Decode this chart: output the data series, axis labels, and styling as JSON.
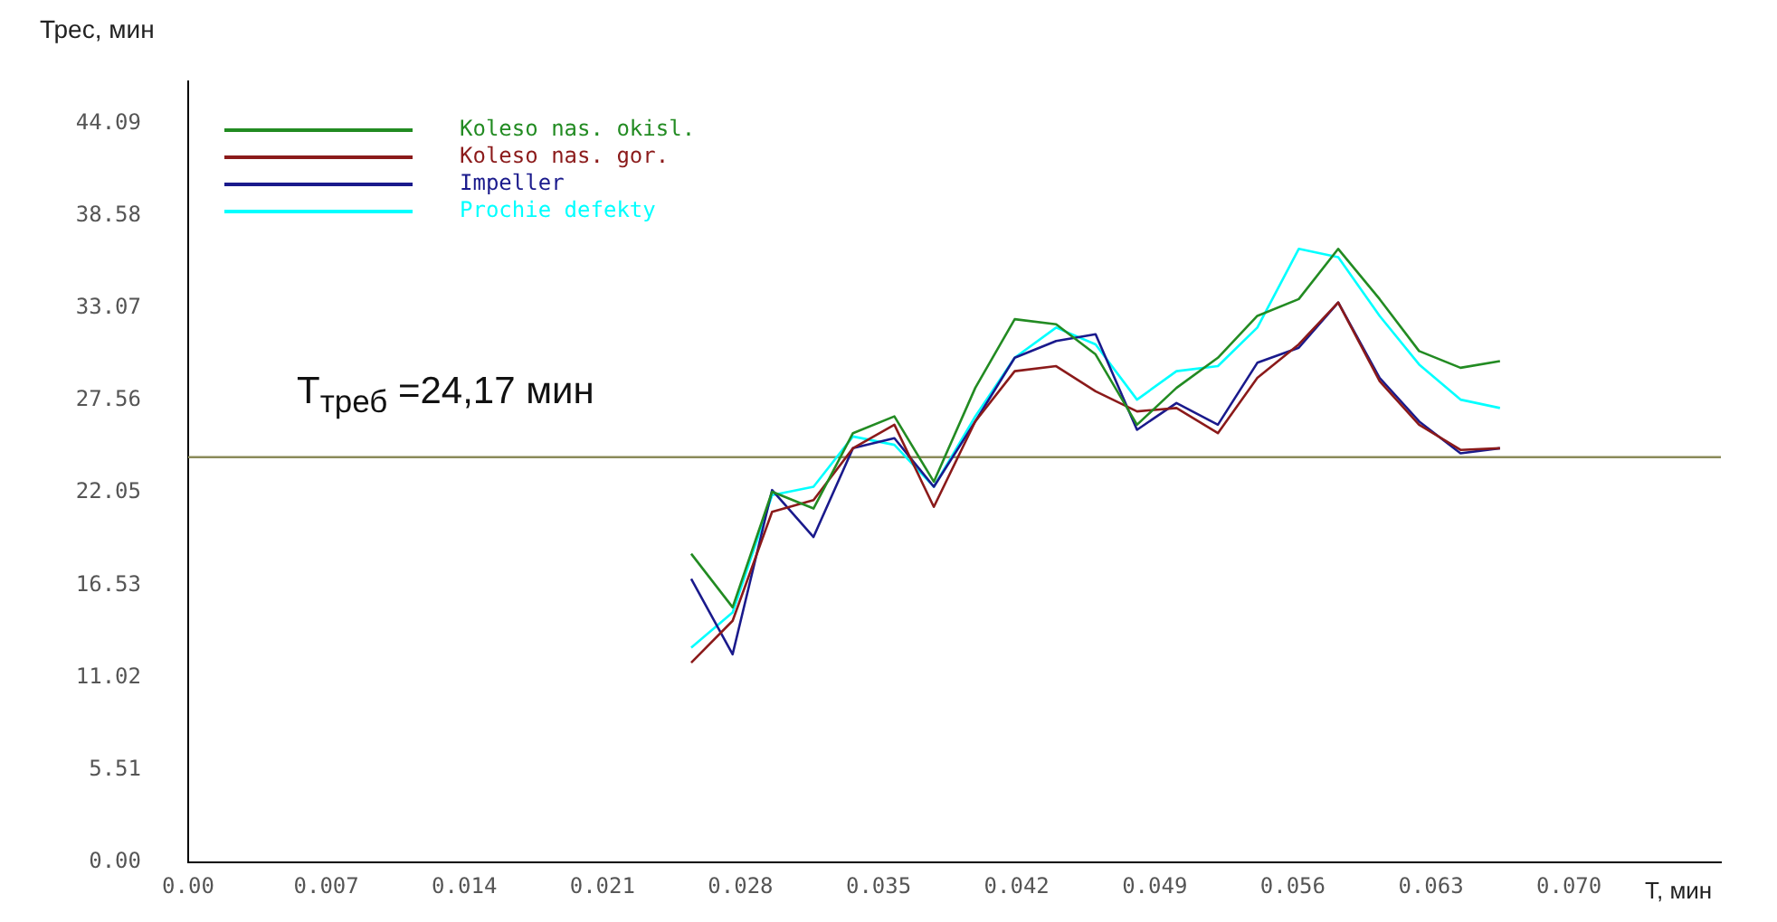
{
  "chart_data": {
    "type": "line",
    "xlabel": "T, мин",
    "ylabel": "Трес, мин",
    "x": [
      0.0255,
      0.0276,
      0.0296,
      0.0317,
      0.0337,
      0.0358,
      0.0378,
      0.0399,
      0.0419,
      0.044,
      0.046,
      0.0481,
      0.0501,
      0.0522,
      0.0542,
      0.0563,
      0.0583,
      0.0604,
      0.0624,
      0.0645,
      0.0665
    ],
    "series": [
      {
        "name": "Koleso nas. okisl.",
        "color": "#228b22",
        "values": [
          18.4,
          15.2,
          22.1,
          21.1,
          25.6,
          26.6,
          22.7,
          28.3,
          32.4,
          32.1,
          30.3,
          26.1,
          28.3,
          30.1,
          32.6,
          33.6,
          36.6,
          33.6,
          30.5,
          29.5,
          29.9
        ]
      },
      {
        "name": "Koleso nas. gor.",
        "color": "#8b1a1a",
        "values": [
          11.9,
          14.4,
          20.9,
          21.6,
          24.7,
          26.1,
          21.2,
          26.3,
          29.3,
          29.6,
          28.1,
          26.9,
          27.1,
          25.6,
          28.9,
          30.9,
          33.4,
          28.7,
          26.1,
          24.6,
          24.7
        ]
      },
      {
        "name": "Impeller",
        "color": "#1a1a8c",
        "values": [
          16.9,
          12.4,
          22.2,
          19.4,
          24.7,
          25.3,
          22.4,
          26.3,
          30.1,
          31.1,
          31.5,
          25.8,
          27.4,
          26.1,
          29.8,
          30.7,
          33.4,
          28.9,
          26.3,
          24.4,
          24.7
        ]
      },
      {
        "name": "Prochie defekty",
        "color": "#00ffff",
        "values": [
          12.8,
          14.9,
          21.9,
          22.4,
          25.4,
          24.9,
          22.4,
          26.6,
          30.1,
          31.9,
          30.9,
          27.6,
          29.3,
          29.6,
          31.9,
          36.6,
          36.1,
          32.6,
          29.7,
          27.6,
          27.1
        ]
      }
    ],
    "xlim": [
      0,
      0.0777
    ],
    "ylim": [
      0,
      46.6
    ],
    "xticks": [
      {
        "value": 0,
        "label": "0.00"
      },
      0.007,
      0.014,
      0.021,
      0.028,
      0.035,
      0.042,
      0.049,
      0.056,
      0.063,
      {
        "value": 0.07,
        "label": "0.070"
      }
    ],
    "yticks": [
      {
        "value": 0,
        "label": "0.00"
      },
      5.51,
      11.02,
      16.53,
      22.05,
      27.56,
      33.07,
      38.58,
      44.09
    ],
    "ref_lines": [
      {
        "axis": "y",
        "value": 24.17,
        "label": "T$_{треб}$ =24,17 мин",
        "color": "#8b8b5a"
      }
    ],
    "grid": false,
    "legend": "top left",
    "marker": "none",
    "line_style": "solid"
  }
}
